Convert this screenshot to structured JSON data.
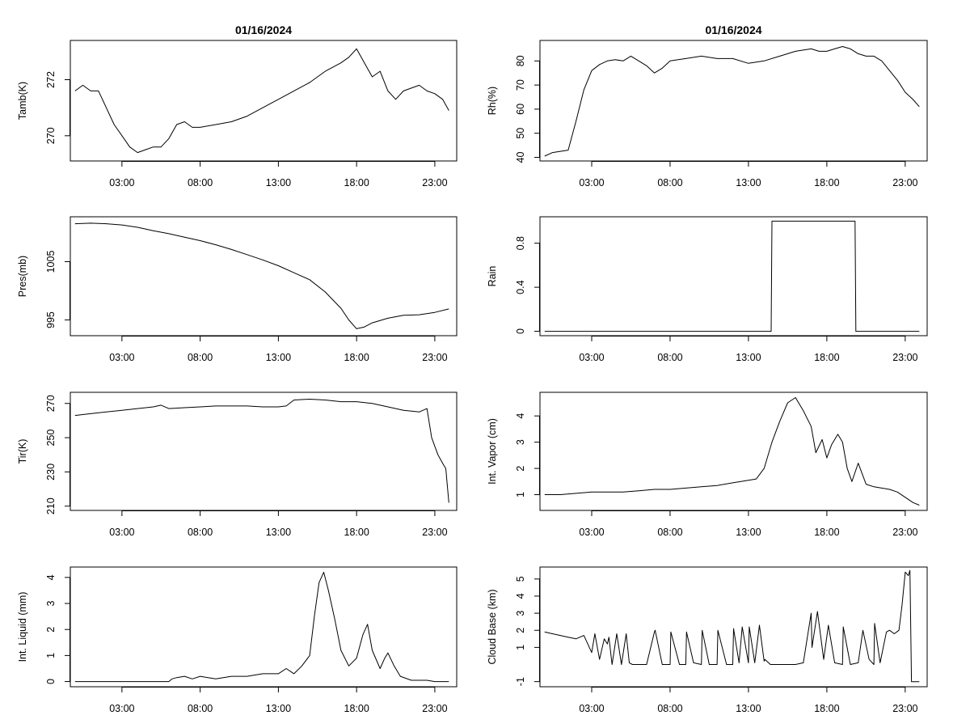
{
  "figure_title": "01/16/2024",
  "chart_data": [
    {
      "type": "line",
      "ylabel": "Tamb(K)",
      "title": "01/16/2024",
      "xticks": [
        "03:00",
        "08:00",
        "13:00",
        "18:00",
        "23:00"
      ],
      "xlim": [
        -0.3,
        24.4
      ],
      "ylim": [
        269.1,
        273.4
      ],
      "yticks": [
        270,
        272
      ],
      "x": [
        0,
        0.5,
        1,
        1.5,
        2,
        2.5,
        3,
        3.5,
        4,
        4.5,
        5,
        5.5,
        6,
        6.5,
        7,
        7.5,
        8,
        9,
        10,
        11,
        12,
        13,
        14,
        15,
        16,
        17,
        17.5,
        18,
        18.5,
        19,
        19.5,
        20,
        20.5,
        21,
        21.5,
        22,
        22.5,
        23,
        23.5,
        23.9
      ],
      "y": [
        271.6,
        271.8,
        271.6,
        271.6,
        271.0,
        270.4,
        270.0,
        269.6,
        269.4,
        269.5,
        269.6,
        269.6,
        269.9,
        270.4,
        270.5,
        270.3,
        270.3,
        270.4,
        270.5,
        270.7,
        271.0,
        271.3,
        271.6,
        271.9,
        272.3,
        272.6,
        272.8,
        273.1,
        272.6,
        272.1,
        272.3,
        271.6,
        271.3,
        271.6,
        271.7,
        271.8,
        271.6,
        271.5,
        271.3,
        270.9
      ]
    },
    {
      "type": "line",
      "ylabel": "Rh(%)",
      "title": "01/16/2024",
      "xticks": [
        "03:00",
        "08:00",
        "13:00",
        "18:00",
        "23:00"
      ],
      "xlim": [
        -0.3,
        24.4
      ],
      "ylim": [
        38.5,
        88.5
      ],
      "yticks": [
        40,
        50,
        60,
        70,
        80
      ],
      "x": [
        0,
        0.5,
        1,
        1.5,
        2,
        2.5,
        3,
        3.5,
        4,
        4.5,
        5,
        5.5,
        6,
        6.5,
        7,
        7.5,
        8,
        9,
        10,
        11,
        12,
        13,
        14,
        15,
        16,
        17,
        17.5,
        18,
        18.5,
        19,
        19.5,
        20,
        20.5,
        21,
        21.5,
        22,
        22.5,
        23,
        23.5,
        23.9
      ],
      "y": [
        40.5,
        42,
        42.5,
        43,
        55,
        68,
        76,
        78.5,
        80,
        80.5,
        80,
        82,
        80,
        78,
        75,
        77,
        80,
        81,
        82,
        81,
        81,
        79,
        80,
        82,
        84,
        85,
        84,
        84,
        85,
        86,
        85,
        83,
        82,
        82,
        80,
        76,
        72,
        67,
        64,
        61
      ]
    },
    {
      "type": "line",
      "ylabel": "Pres(mb)",
      "title": "",
      "xticks": [
        "03:00",
        "08:00",
        "13:00",
        "18:00",
        "23:00"
      ],
      "xlim": [
        -0.3,
        24.4
      ],
      "ylim": [
        992.3,
        1012.7
      ],
      "yticks": [
        995,
        1005
      ],
      "x": [
        0,
        1,
        2,
        3,
        4,
        5,
        6,
        7,
        8,
        9,
        10,
        11,
        12,
        13,
        14,
        15,
        16,
        17,
        17.5,
        18,
        18.5,
        19,
        20,
        21,
        22,
        23,
        23.9
      ],
      "y": [
        1011.5,
        1011.6,
        1011.5,
        1011.3,
        1010.9,
        1010.3,
        1009.8,
        1009.2,
        1008.6,
        1007.9,
        1007.1,
        1006.2,
        1005.3,
        1004.3,
        1003.1,
        1001.9,
        999.8,
        997.0,
        995.0,
        993.5,
        993.8,
        994.5,
        995.3,
        995.8,
        995.9,
        996.3,
        996.9
      ]
    },
    {
      "type": "step",
      "ylabel": "Rain",
      "title": "",
      "xticks": [
        "03:00",
        "08:00",
        "13:00",
        "18:00",
        "23:00"
      ],
      "xlim": [
        -0.3,
        24.4
      ],
      "ylim": [
        -0.04,
        1.04
      ],
      "yticks": [
        0.0,
        0.4,
        0.8
      ],
      "x": [
        0,
        14.45,
        14.5,
        19.8,
        19.85,
        23.9
      ],
      "y": [
        0,
        0,
        1,
        1,
        0,
        0
      ]
    },
    {
      "type": "line",
      "ylabel": "Tir(K)",
      "title": "",
      "xticks": [
        "03:00",
        "08:00",
        "13:00",
        "18:00",
        "23:00"
      ],
      "xlim": [
        -0.3,
        24.4
      ],
      "ylim": [
        207.5,
        276.5
      ],
      "yticks": [
        210,
        230,
        250,
        270
      ],
      "x": [
        0,
        1,
        2,
        3,
        4,
        5,
        5.5,
        6,
        7,
        8,
        9,
        10,
        11,
        12,
        13,
        13.5,
        14,
        15,
        16,
        17,
        18,
        19,
        20,
        21,
        22,
        22.5,
        22.8,
        23,
        23.2,
        23.5,
        23.7,
        23.9
      ],
      "y": [
        263,
        264,
        265,
        266,
        267,
        268,
        269,
        267,
        267.5,
        268,
        268.5,
        268.5,
        268.5,
        268,
        268,
        268.5,
        272,
        272.5,
        272,
        271,
        271,
        270,
        268,
        266,
        265,
        267,
        250,
        245,
        240,
        235,
        232,
        212
      ]
    },
    {
      "type": "line",
      "ylabel": "Int. Vapor (cm)",
      "title": "",
      "xticks": [
        "03:00",
        "08:00",
        "13:00",
        "18:00",
        "23:00"
      ],
      "xlim": [
        -0.3,
        24.4
      ],
      "ylim": [
        0.4,
        4.9
      ],
      "yticks": [
        1,
        2,
        3,
        4
      ],
      "x": [
        0,
        1,
        2,
        3,
        4,
        5,
        6,
        7,
        8,
        9,
        10,
        11,
        12,
        13,
        13.5,
        14,
        14.5,
        15,
        15.5,
        16,
        16.5,
        17,
        17.3,
        17.7,
        18,
        18.3,
        18.7,
        19,
        19.3,
        19.6,
        20,
        20.5,
        21,
        22,
        22.5,
        23,
        23.5,
        23.9
      ],
      "y": [
        1.0,
        1.0,
        1.05,
        1.1,
        1.1,
        1.1,
        1.15,
        1.2,
        1.2,
        1.25,
        1.3,
        1.35,
        1.45,
        1.55,
        1.6,
        2.0,
        3.0,
        3.8,
        4.5,
        4.7,
        4.2,
        3.6,
        2.6,
        3.1,
        2.4,
        2.9,
        3.3,
        3.0,
        2.0,
        1.5,
        2.2,
        1.4,
        1.3,
        1.2,
        1.1,
        0.9,
        0.7,
        0.6
      ]
    },
    {
      "type": "line",
      "ylabel": "Int. Liquid (mm)",
      "title": "",
      "xticks": [
        "03:00",
        "08:00",
        "13:00",
        "18:00",
        "23:00"
      ],
      "xlim": [
        -0.3,
        24.4
      ],
      "ylim": [
        -0.2,
        4.4
      ],
      "yticks": [
        0,
        1,
        2,
        3,
        4
      ],
      "x": [
        0,
        1,
        2,
        3,
        4,
        5,
        6.0,
        6.2,
        6.5,
        7,
        7.5,
        8,
        8.5,
        9,
        10,
        11,
        12,
        13,
        13.5,
        14,
        14.5,
        15,
        15.3,
        15.6,
        15.9,
        16.2,
        16.6,
        17,
        17.5,
        18,
        18.4,
        18.7,
        19,
        19.5,
        19.8,
        20,
        20.4,
        20.8,
        21.5,
        22,
        22.5,
        23,
        23.9
      ],
      "y": [
        0,
        0,
        0,
        0,
        0,
        0,
        0,
        0.1,
        0.15,
        0.2,
        0.1,
        0.2,
        0.15,
        0.1,
        0.2,
        0.2,
        0.3,
        0.3,
        0.5,
        0.3,
        0.6,
        1.0,
        2.5,
        3.8,
        4.2,
        3.5,
        2.4,
        1.2,
        0.6,
        0.9,
        1.8,
        2.2,
        1.2,
        0.5,
        0.9,
        1.1,
        0.6,
        0.2,
        0.05,
        0.05,
        0.05,
        0,
        0
      ]
    },
    {
      "type": "line",
      "ylabel": "Cloud Base (km)",
      "title": "",
      "xticks": [
        "03:00",
        "08:00",
        "13:00",
        "18:00",
        "23:00"
      ],
      "xlim": [
        -0.3,
        24.4
      ],
      "ylim": [
        -1.3,
        5.7
      ],
      "yticks": [
        -1,
        1,
        2,
        3,
        4,
        5
      ],
      "x": [
        0,
        0.5,
        1,
        1.5,
        2,
        2.5,
        3,
        3.2,
        3.5,
        3.8,
        4.0,
        4.1,
        4.3,
        4.6,
        4.9,
        5.2,
        5.4,
        5.6,
        5.8,
        6.0,
        6.5,
        7.0,
        7.05,
        7.5,
        8.0,
        8.05,
        8.6,
        9.0,
        9.05,
        9.5,
        10.0,
        10.05,
        10.5,
        11.0,
        11.05,
        11.6,
        12.0,
        12.05,
        12.4,
        12.6,
        13.0,
        13.05,
        13.4,
        13.7,
        14.0,
        14.05,
        14.4,
        14.8,
        15.0,
        15.5,
        16.0,
        16.5,
        17.0,
        17.05,
        17.4,
        17.8,
        18.1,
        18.5,
        19.0,
        19.05,
        19.5,
        20.0,
        20.3,
        20.7,
        21.0,
        21.05,
        21.4,
        21.8,
        22.0,
        22.3,
        22.6,
        22.8,
        23.0,
        23.2,
        23.3,
        23.4,
        23.5,
        23.9
      ],
      "y": [
        1.9,
        1.8,
        1.7,
        1.6,
        1.5,
        1.7,
        0.7,
        1.8,
        0.3,
        1.5,
        1.2,
        1.6,
        0.0,
        1.8,
        0.0,
        1.8,
        0.1,
        0.0,
        0.0,
        0.0,
        0.0,
        1.9,
        2.0,
        0.0,
        0.0,
        1.9,
        0.0,
        0.0,
        1.9,
        0.1,
        0.0,
        2.0,
        0.0,
        0.0,
        2.0,
        0.0,
        0.0,
        2.1,
        0.1,
        2.2,
        0.1,
        2.2,
        0.1,
        2.3,
        0.2,
        0.3,
        0.0,
        0.0,
        0.0,
        0.0,
        0.0,
        0.1,
        3.0,
        1.0,
        3.1,
        0.3,
        2.3,
        0.1,
        0.0,
        2.2,
        0.0,
        0.1,
        2.0,
        0.3,
        0.0,
        2.4,
        0.1,
        1.9,
        2.0,
        1.8,
        2.0,
        3.5,
        5.4,
        5.2,
        5.5,
        -1.0,
        -1.0,
        -1.0
      ]
    }
  ]
}
